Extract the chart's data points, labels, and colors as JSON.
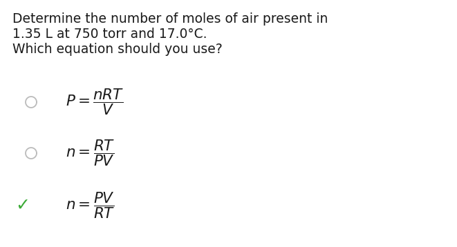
{
  "title_line1": "Determine the number of moles of air present in",
  "title_line2": "1.35 L at 750 torr and 17.0°C.",
  "title_line3": "Which equation should you use?",
  "background_color": "#ffffff",
  "text_color": "#1a1a1a",
  "check_color": "#3aaa35",
  "circle_color": "#bbbbbb",
  "title_fontsize": 13.5,
  "formula_fontsize": 15.5,
  "opt1_formula": "$\\mathit{P} = \\dfrac{\\mathit{nRT}}{\\mathit{V}}$",
  "opt2_formula": "$\\mathit{n} = \\dfrac{\\mathit{RT}}{\\mathit{PV}}$",
  "opt3_formula": "$\\mathit{n} = \\dfrac{\\mathit{PV}}{\\mathit{RT}}$"
}
